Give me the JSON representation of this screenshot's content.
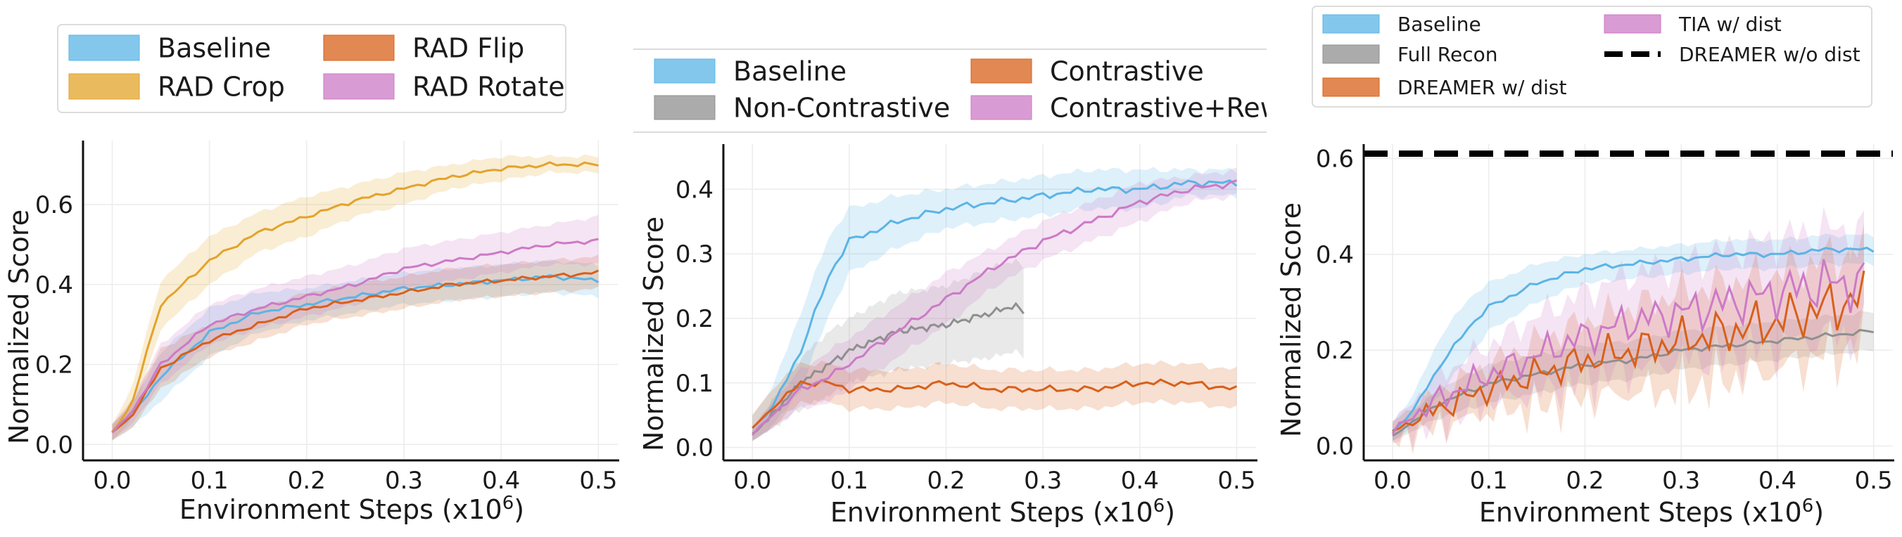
{
  "chart_data": [
    {
      "type": "line",
      "title": "",
      "xlabel": "Environment Steps (x10",
      "xlabel_sup": "6",
      "xlabel_close": ")",
      "ylabel": "Normalized Score",
      "xlim": [
        -0.03,
        0.52
      ],
      "ylim": [
        -0.04,
        0.76
      ],
      "xticks": [
        0.0,
        0.1,
        0.2,
        0.3,
        0.4,
        0.5
      ],
      "xtick_labels": [
        "0.0",
        "0.1",
        "0.2",
        "0.3",
        "0.4",
        "0.5"
      ],
      "yticks": [
        0.0,
        0.2,
        0.4,
        0.6
      ],
      "ytick_labels": [
        "0.0",
        "0.2",
        "0.4",
        "0.6"
      ],
      "grid": true,
      "legend_position": "top",
      "series": [
        {
          "name": "Baseline",
          "color": "#5bb4e5",
          "x": [
            0.0,
            0.02,
            0.05,
            0.1,
            0.15,
            0.2,
            0.25,
            0.3,
            0.35,
            0.4,
            0.45,
            0.5
          ],
          "y": [
            0.03,
            0.07,
            0.17,
            0.28,
            0.33,
            0.35,
            0.37,
            0.39,
            0.4,
            0.41,
            0.42,
            0.41
          ],
          "band": [
            0.02,
            0.03,
            0.06,
            0.06,
            0.05,
            0.04,
            0.04,
            0.04,
            0.04,
            0.04,
            0.04,
            0.04
          ]
        },
        {
          "name": "RAD Crop",
          "color": "#e3a32a",
          "x": [
            0.0,
            0.02,
            0.05,
            0.1,
            0.15,
            0.2,
            0.25,
            0.3,
            0.35,
            0.4,
            0.45,
            0.5
          ],
          "y": [
            0.03,
            0.1,
            0.35,
            0.46,
            0.53,
            0.57,
            0.61,
            0.64,
            0.67,
            0.69,
            0.7,
            0.7
          ],
          "band": [
            0.02,
            0.04,
            0.06,
            0.06,
            0.05,
            0.05,
            0.04,
            0.04,
            0.03,
            0.03,
            0.02,
            0.02
          ]
        },
        {
          "name": "RAD Flip",
          "color": "#d8601a",
          "x": [
            0.0,
            0.02,
            0.05,
            0.1,
            0.15,
            0.2,
            0.25,
            0.3,
            0.35,
            0.4,
            0.45,
            0.5
          ],
          "y": [
            0.03,
            0.07,
            0.19,
            0.26,
            0.3,
            0.34,
            0.36,
            0.38,
            0.4,
            0.41,
            0.42,
            0.43
          ],
          "band": [
            0.02,
            0.03,
            0.05,
            0.04,
            0.04,
            0.04,
            0.04,
            0.04,
            0.04,
            0.04,
            0.04,
            0.04
          ]
        },
        {
          "name": "RAD Rotate",
          "color": "#cc7ac6",
          "x": [
            0.0,
            0.02,
            0.05,
            0.1,
            0.15,
            0.2,
            0.25,
            0.3,
            0.35,
            0.4,
            0.45,
            0.5
          ],
          "y": [
            0.03,
            0.08,
            0.2,
            0.3,
            0.34,
            0.37,
            0.4,
            0.44,
            0.46,
            0.48,
            0.5,
            0.51
          ],
          "band": [
            0.02,
            0.03,
            0.05,
            0.05,
            0.05,
            0.05,
            0.05,
            0.05,
            0.05,
            0.05,
            0.05,
            0.06
          ]
        }
      ]
    },
    {
      "type": "line",
      "title": "",
      "xlabel": "Environment Steps (x10",
      "xlabel_sup": "6",
      "xlabel_close": ")",
      "ylabel": "Normalized Score",
      "xlim": [
        -0.03,
        0.52
      ],
      "ylim": [
        -0.02,
        0.47
      ],
      "xticks": [
        0.0,
        0.1,
        0.2,
        0.3,
        0.4,
        0.5
      ],
      "xtick_labels": [
        "0.0",
        "0.1",
        "0.2",
        "0.3",
        "0.4",
        "0.5"
      ],
      "yticks": [
        0.0,
        0.1,
        0.2,
        0.3,
        0.4
      ],
      "ytick_labels": [
        "0.0",
        "0.1",
        "0.2",
        "0.3",
        "0.4"
      ],
      "grid": true,
      "legend_position": "top",
      "series": [
        {
          "name": "Baseline",
          "color": "#5bb4e5",
          "x": [
            0.0,
            0.02,
            0.05,
            0.08,
            0.1,
            0.15,
            0.2,
            0.25,
            0.3,
            0.35,
            0.4,
            0.45,
            0.5
          ],
          "y": [
            0.03,
            0.06,
            0.15,
            0.27,
            0.32,
            0.35,
            0.37,
            0.38,
            0.39,
            0.4,
            0.4,
            0.41,
            0.41
          ],
          "band": [
            0.02,
            0.03,
            0.06,
            0.06,
            0.05,
            0.04,
            0.03,
            0.03,
            0.03,
            0.03,
            0.03,
            0.02,
            0.02
          ]
        },
        {
          "name": "Non-Contrastive",
          "color": "#8f8f8f",
          "x": [
            0.0,
            0.02,
            0.05,
            0.08,
            0.1,
            0.15,
            0.2,
            0.25,
            0.27,
            0.28
          ],
          "y": [
            0.02,
            0.05,
            0.1,
            0.13,
            0.15,
            0.18,
            0.19,
            0.21,
            0.22,
            0.21
          ],
          "band": [
            0.01,
            0.02,
            0.04,
            0.05,
            0.05,
            0.06,
            0.06,
            0.07,
            0.07,
            0.07
          ]
        },
        {
          "name": "Contrastive",
          "color": "#d8601a",
          "x": [
            0.0,
            0.02,
            0.05,
            0.08,
            0.1,
            0.15,
            0.2,
            0.25,
            0.3,
            0.35,
            0.4,
            0.45,
            0.5
          ],
          "y": [
            0.03,
            0.06,
            0.1,
            0.1,
            0.09,
            0.09,
            0.1,
            0.09,
            0.09,
            0.09,
            0.1,
            0.1,
            0.09
          ],
          "band": [
            0.02,
            0.03,
            0.03,
            0.03,
            0.03,
            0.03,
            0.03,
            0.03,
            0.03,
            0.03,
            0.03,
            0.03,
            0.03
          ]
        },
        {
          "name": "Contrastive+Rew",
          "color": "#cc7ac6",
          "x": [
            0.0,
            0.02,
            0.05,
            0.08,
            0.1,
            0.15,
            0.2,
            0.25,
            0.3,
            0.35,
            0.4,
            0.45,
            0.5
          ],
          "y": [
            0.02,
            0.05,
            0.09,
            0.11,
            0.13,
            0.18,
            0.23,
            0.28,
            0.32,
            0.35,
            0.38,
            0.4,
            0.41
          ],
          "band": [
            0.01,
            0.02,
            0.03,
            0.04,
            0.04,
            0.04,
            0.04,
            0.03,
            0.03,
            0.03,
            0.03,
            0.02,
            0.02
          ]
        }
      ]
    },
    {
      "type": "line",
      "title": "",
      "xlabel": "Environment Steps (x10",
      "xlabel_sup": "6",
      "xlabel_close": ")",
      "ylabel": "Normalized Score",
      "xlim": [
        -0.03,
        0.52
      ],
      "ylim": [
        -0.03,
        0.63
      ],
      "xticks": [
        0.0,
        0.1,
        0.2,
        0.3,
        0.4,
        0.5
      ],
      "xtick_labels": [
        "0.0",
        "0.1",
        "0.2",
        "0.3",
        "0.4",
        "0.5"
      ],
      "yticks": [
        0.0,
        0.2,
        0.4,
        0.6
      ],
      "ytick_labels": [
        "0.0",
        "0.2",
        "0.4",
        "0.6"
      ],
      "grid": true,
      "legend_position": "top",
      "series": [
        {
          "name": "Baseline",
          "color": "#5bb4e5",
          "x": [
            0.0,
            0.02,
            0.05,
            0.08,
            0.1,
            0.15,
            0.2,
            0.25,
            0.3,
            0.35,
            0.4,
            0.45,
            0.5
          ],
          "y": [
            0.03,
            0.07,
            0.17,
            0.25,
            0.29,
            0.34,
            0.37,
            0.38,
            0.39,
            0.4,
            0.4,
            0.41,
            0.41
          ],
          "band": [
            0.02,
            0.03,
            0.06,
            0.06,
            0.05,
            0.04,
            0.03,
            0.03,
            0.03,
            0.03,
            0.03,
            0.03,
            0.03
          ]
        },
        {
          "name": "Full Recon",
          "color": "#8f8f8f",
          "x": [
            0.0,
            0.02,
            0.05,
            0.1,
            0.15,
            0.2,
            0.25,
            0.3,
            0.35,
            0.4,
            0.45,
            0.5
          ],
          "y": [
            0.02,
            0.05,
            0.09,
            0.13,
            0.15,
            0.17,
            0.18,
            0.2,
            0.21,
            0.22,
            0.23,
            0.24
          ],
          "band": [
            0.01,
            0.02,
            0.03,
            0.04,
            0.04,
            0.04,
            0.04,
            0.04,
            0.04,
            0.04,
            0.04,
            0.04
          ]
        },
        {
          "name": "DREAMER w/ dist",
          "color": "#d8601a",
          "jagged": true,
          "x": [
            0.0,
            0.02,
            0.05,
            0.1,
            0.15,
            0.2,
            0.25,
            0.3,
            0.35,
            0.4,
            0.45,
            0.49
          ],
          "y": [
            0.03,
            0.05,
            0.08,
            0.12,
            0.15,
            0.18,
            0.2,
            0.22,
            0.24,
            0.26,
            0.29,
            0.31
          ],
          "band": [
            0.02,
            0.03,
            0.04,
            0.05,
            0.07,
            0.08,
            0.09,
            0.1,
            0.1,
            0.1,
            0.1,
            0.1
          ]
        },
        {
          "name": "TIA w/ dist",
          "color": "#cc7ac6",
          "jagged": true,
          "x": [
            0.0,
            0.02,
            0.05,
            0.1,
            0.15,
            0.2,
            0.25,
            0.3,
            0.35,
            0.4,
            0.45,
            0.49
          ],
          "y": [
            0.03,
            0.06,
            0.1,
            0.15,
            0.19,
            0.23,
            0.26,
            0.28,
            0.3,
            0.32,
            0.34,
            0.34
          ],
          "band": [
            0.02,
            0.03,
            0.05,
            0.06,
            0.08,
            0.09,
            0.1,
            0.1,
            0.11,
            0.11,
            0.11,
            0.11
          ]
        },
        {
          "name": "DREAMER w/o dist",
          "color": "#000000",
          "style": "dashed",
          "hline": 0.61
        }
      ]
    }
  ]
}
